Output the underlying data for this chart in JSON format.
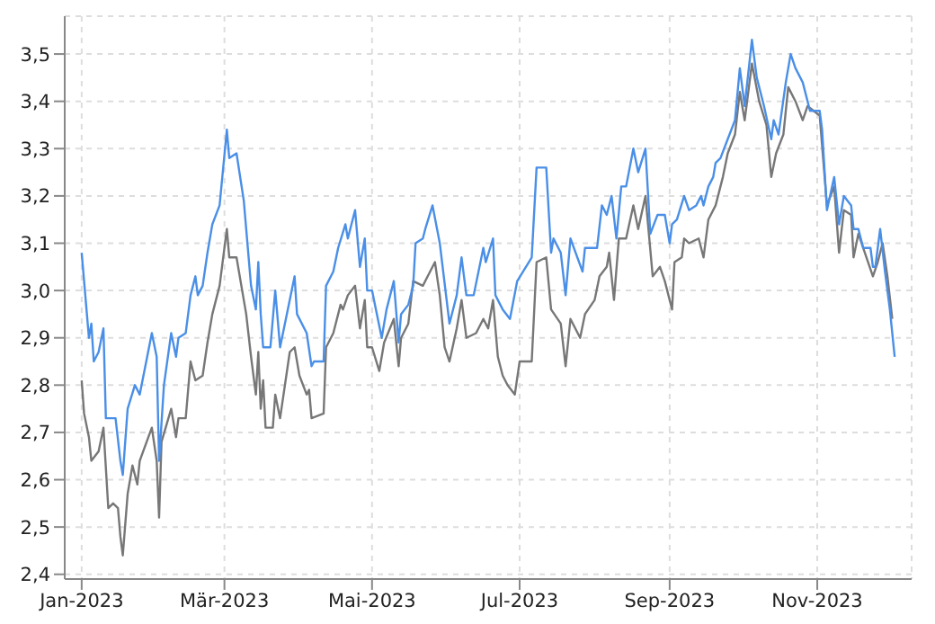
{
  "chart_data": {
    "type": "line",
    "xlim": [
      "2022-12-25",
      "2023-12-10"
    ],
    "xticks": [
      {
        "value": "2023-01-01",
        "label": "Jan-2023"
      },
      {
        "value": "2023-03-01",
        "label": "Mär-2023"
      },
      {
        "value": "2023-05-01",
        "label": "Mai-2023"
      },
      {
        "value": "2023-07-01",
        "label": "Jul-2023"
      },
      {
        "value": "2023-09-01",
        "label": "Sep-2023"
      },
      {
        "value": "2023-11-01",
        "label": "Nov-2023"
      }
    ],
    "ylim": [
      2.39,
      3.58
    ],
    "yticks": [
      {
        "value": 2.4,
        "label": "2,4"
      },
      {
        "value": 2.5,
        "label": "2,5"
      },
      {
        "value": 2.6,
        "label": "2,6"
      },
      {
        "value": 2.7,
        "label": "2,7"
      },
      {
        "value": 2.8,
        "label": "2,8"
      },
      {
        "value": 2.9,
        "label": "2,9"
      },
      {
        "value": 3.0,
        "label": "3,0"
      },
      {
        "value": 3.1,
        "label": "3,1"
      },
      {
        "value": 3.2,
        "label": "3,2"
      },
      {
        "value": 3.3,
        "label": "3,3"
      },
      {
        "value": 3.4,
        "label": "3,4"
      },
      {
        "value": 3.5,
        "label": "3,5"
      }
    ],
    "grid": true,
    "marker": "none",
    "line_style": "solid",
    "series": [
      {
        "color": "#777777",
        "x": [
          "2023-01-01",
          "2023-01-02",
          "2023-01-04",
          "2023-01-05",
          "2023-01-08",
          "2023-01-10",
          "2023-01-12",
          "2023-01-14",
          "2023-01-16",
          "2023-01-17",
          "2023-01-18",
          "2023-01-20",
          "2023-01-22",
          "2023-01-24",
          "2023-01-25",
          "2023-01-30",
          "2023-02-01",
          "2023-02-02",
          "2023-02-03",
          "2023-02-07",
          "2023-02-09",
          "2023-02-10",
          "2023-02-13",
          "2023-02-15",
          "2023-02-17",
          "2023-02-20",
          "2023-02-22",
          "2023-02-24",
          "2023-02-27",
          "2023-03-02",
          "2023-03-03",
          "2023-03-06",
          "2023-03-09",
          "2023-03-10",
          "2023-03-12",
          "2023-03-14",
          "2023-03-15",
          "2023-03-16",
          "2023-03-17",
          "2023-03-18",
          "2023-03-21",
          "2023-03-22",
          "2023-03-24",
          "2023-03-28",
          "2023-03-30",
          "2023-04-01",
          "2023-04-04",
          "2023-04-05",
          "2023-04-06",
          "2023-04-11",
          "2023-04-12",
          "2023-04-15",
          "2023-04-18",
          "2023-04-19",
          "2023-04-21",
          "2023-04-24",
          "2023-04-26",
          "2023-04-28",
          "2023-04-29",
          "2023-05-01",
          "2023-05-04",
          "2023-05-06",
          "2023-05-10",
          "2023-05-12",
          "2023-05-13",
          "2023-05-16",
          "2023-05-18",
          "2023-05-22",
          "2023-05-24",
          "2023-05-27",
          "2023-05-29",
          "2023-05-31",
          "2023-06-02",
          "2023-06-05",
          "2023-06-07",
          "2023-06-09",
          "2023-06-13",
          "2023-06-16",
          "2023-06-18",
          "2023-06-20",
          "2023-06-22",
          "2023-06-24",
          "2023-06-26",
          "2023-06-29",
          "2023-07-01",
          "2023-07-06",
          "2023-07-08",
          "2023-07-12",
          "2023-07-14",
          "2023-07-18",
          "2023-07-20",
          "2023-07-22",
          "2023-07-26",
          "2023-07-28",
          "2023-08-01",
          "2023-08-03",
          "2023-08-06",
          "2023-08-07",
          "2023-08-09",
          "2023-08-11",
          "2023-08-14",
          "2023-08-17",
          "2023-08-19",
          "2023-08-22",
          "2023-08-25",
          "2023-08-28",
          "2023-08-30",
          "2023-09-02",
          "2023-09-03",
          "2023-09-06",
          "2023-09-07",
          "2023-09-09",
          "2023-09-13",
          "2023-09-15",
          "2023-09-17",
          "2023-09-20",
          "2023-09-23",
          "2023-09-25",
          "2023-09-28",
          "2023-09-30",
          "2023-10-02",
          "2023-10-05",
          "2023-10-08",
          "2023-10-11",
          "2023-10-13",
          "2023-10-15",
          "2023-10-18",
          "2023-10-20",
          "2023-10-23",
          "2023-10-26",
          "2023-10-28",
          "2023-11-02",
          "2023-11-05",
          "2023-11-08",
          "2023-11-10",
          "2023-11-12",
          "2023-11-15",
          "2023-11-16",
          "2023-11-18",
          "2023-11-20",
          "2023-11-24",
          "2023-11-26",
          "2023-11-28",
          "2023-11-30",
          "2023-12-02"
        ],
        "values": [
          2.81,
          2.74,
          2.69,
          2.64,
          2.66,
          2.71,
          2.54,
          2.55,
          2.54,
          2.48,
          2.44,
          2.57,
          2.63,
          2.59,
          2.64,
          2.71,
          2.64,
          2.52,
          2.68,
          2.75,
          2.69,
          2.73,
          2.73,
          2.85,
          2.81,
          2.82,
          2.89,
          2.95,
          3.01,
          3.13,
          3.07,
          3.07,
          2.98,
          2.95,
          2.86,
          2.78,
          2.87,
          2.75,
          2.81,
          2.71,
          2.71,
          2.78,
          2.73,
          2.87,
          2.88,
          2.82,
          2.78,
          2.79,
          2.73,
          2.74,
          2.88,
          2.91,
          2.97,
          2.96,
          2.99,
          3.01,
          2.92,
          2.98,
          2.88,
          2.88,
          2.83,
          2.89,
          2.94,
          2.84,
          2.9,
          2.93,
          3.02,
          3.01,
          3.03,
          3.06,
          2.99,
          2.88,
          2.85,
          2.92,
          2.98,
          2.9,
          2.91,
          2.94,
          2.92,
          2.98,
          2.86,
          2.82,
          2.8,
          2.78,
          2.85,
          2.85,
          3.06,
          3.07,
          2.96,
          2.93,
          2.84,
          2.94,
          2.9,
          2.95,
          2.98,
          3.03,
          3.05,
          3.08,
          2.98,
          3.11,
          3.11,
          3.18,
          3.13,
          3.2,
          3.03,
          3.05,
          3.02,
          2.96,
          3.06,
          3.07,
          3.11,
          3.1,
          3.11,
          3.07,
          3.15,
          3.18,
          3.24,
          3.29,
          3.33,
          3.42,
          3.36,
          3.48,
          3.4,
          3.35,
          3.24,
          3.29,
          3.33,
          3.43,
          3.4,
          3.36,
          3.39,
          3.37,
          3.18,
          3.22,
          3.08,
          3.17,
          3.16,
          3.07,
          3.12,
          3.09,
          3.03,
          3.06,
          3.1,
          3.03,
          2.94
        ]
      },
      {
        "color": "#4a8fe7",
        "x": [
          "2023-01-01",
          "2023-01-04",
          "2023-01-05",
          "2023-01-06",
          "2023-01-08",
          "2023-01-10",
          "2023-01-11",
          "2023-01-15",
          "2023-01-17",
          "2023-01-18",
          "2023-01-20",
          "2023-01-23",
          "2023-01-25",
          "2023-01-30",
          "2023-02-01",
          "2023-02-02",
          "2023-02-04",
          "2023-02-07",
          "2023-02-09",
          "2023-02-10",
          "2023-02-13",
          "2023-02-15",
          "2023-02-17",
          "2023-02-18",
          "2023-02-20",
          "2023-02-22",
          "2023-02-24",
          "2023-02-27",
          "2023-03-02",
          "2023-03-03",
          "2023-03-06",
          "2023-03-09",
          "2023-03-12",
          "2023-03-14",
          "2023-03-15",
          "2023-03-16",
          "2023-03-17",
          "2023-03-20",
          "2023-03-22",
          "2023-03-24",
          "2023-03-30",
          "2023-03-31",
          "2023-04-04",
          "2023-04-06",
          "2023-04-07",
          "2023-04-11",
          "2023-04-12",
          "2023-04-15",
          "2023-04-17",
          "2023-04-20",
          "2023-04-21",
          "2023-04-24",
          "2023-04-26",
          "2023-04-28",
          "2023-04-29",
          "2023-05-01",
          "2023-05-05",
          "2023-05-07",
          "2023-05-10",
          "2023-05-12",
          "2023-05-13",
          "2023-05-16",
          "2023-05-18",
          "2023-05-19",
          "2023-05-22",
          "2023-05-23",
          "2023-05-26",
          "2023-05-29",
          "2023-06-02",
          "2023-06-05",
          "2023-06-07",
          "2023-06-09",
          "2023-06-12",
          "2023-06-16",
          "2023-06-17",
          "2023-06-20",
          "2023-06-21",
          "2023-06-24",
          "2023-06-27",
          "2023-06-30",
          "2023-07-06",
          "2023-07-08",
          "2023-07-12",
          "2023-07-14",
          "2023-07-15",
          "2023-07-18",
          "2023-07-20",
          "2023-07-22",
          "2023-07-27",
          "2023-07-28",
          "2023-08-02",
          "2023-08-04",
          "2023-08-06",
          "2023-08-08",
          "2023-08-10",
          "2023-08-12",
          "2023-08-14",
          "2023-08-17",
          "2023-08-19",
          "2023-08-22",
          "2023-08-24",
          "2023-08-27",
          "2023-08-30",
          "2023-09-01",
          "2023-09-02",
          "2023-09-04",
          "2023-09-07",
          "2023-09-09",
          "2023-09-12",
          "2023-09-14",
          "2023-09-15",
          "2023-09-17",
          "2023-09-19",
          "2023-09-20",
          "2023-09-22",
          "2023-09-25",
          "2023-09-28",
          "2023-09-30",
          "2023-10-02",
          "2023-10-05",
          "2023-10-07",
          "2023-10-10",
          "2023-10-13",
          "2023-10-14",
          "2023-10-16",
          "2023-10-19",
          "2023-10-21",
          "2023-10-23",
          "2023-10-26",
          "2023-10-27",
          "2023-10-29",
          "2023-11-02",
          "2023-11-03",
          "2023-11-05",
          "2023-11-08",
          "2023-11-10",
          "2023-11-12",
          "2023-11-15",
          "2023-11-16",
          "2023-11-18",
          "2023-11-20",
          "2023-11-23",
          "2023-11-24",
          "2023-11-25",
          "2023-11-27",
          "2023-11-29",
          "2023-12-01",
          "2023-12-03"
        ],
        "values": [
          3.08,
          2.9,
          2.93,
          2.85,
          2.87,
          2.92,
          2.73,
          2.73,
          2.64,
          2.61,
          2.75,
          2.8,
          2.78,
          2.91,
          2.86,
          2.64,
          2.8,
          2.91,
          2.86,
          2.9,
          2.91,
          2.99,
          3.03,
          2.99,
          3.01,
          3.08,
          3.14,
          3.18,
          3.34,
          3.28,
          3.29,
          3.19,
          3.01,
          2.96,
          3.06,
          2.95,
          2.88,
          2.88,
          3.0,
          2.88,
          3.03,
          2.95,
          2.91,
          2.84,
          2.85,
          2.85,
          3.01,
          3.04,
          3.09,
          3.14,
          3.11,
          3.17,
          3.05,
          3.11,
          3.0,
          3.0,
          2.9,
          2.96,
          3.02,
          2.89,
          2.95,
          2.97,
          3.01,
          3.1,
          3.11,
          3.13,
          3.18,
          3.1,
          2.93,
          2.99,
          3.07,
          2.99,
          2.99,
          3.09,
          3.06,
          3.11,
          2.99,
          2.96,
          2.94,
          3.02,
          3.07,
          3.26,
          3.26,
          3.08,
          3.11,
          3.08,
          2.99,
          3.11,
          3.04,
          3.09,
          3.09,
          3.18,
          3.16,
          3.2,
          3.11,
          3.22,
          3.22,
          3.3,
          3.25,
          3.3,
          3.12,
          3.16,
          3.16,
          3.1,
          3.14,
          3.15,
          3.2,
          3.17,
          3.18,
          3.2,
          3.18,
          3.22,
          3.24,
          3.27,
          3.28,
          3.32,
          3.36,
          3.47,
          3.39,
          3.53,
          3.45,
          3.39,
          3.32,
          3.36,
          3.33,
          3.44,
          3.5,
          3.47,
          3.44,
          3.42,
          3.38,
          3.38,
          3.34,
          3.17,
          3.24,
          3.14,
          3.2,
          3.18,
          3.13,
          3.13,
          3.09,
          3.09,
          3.05,
          3.05,
          3.13,
          3.04,
          2.96,
          2.86
        ]
      }
    ]
  }
}
